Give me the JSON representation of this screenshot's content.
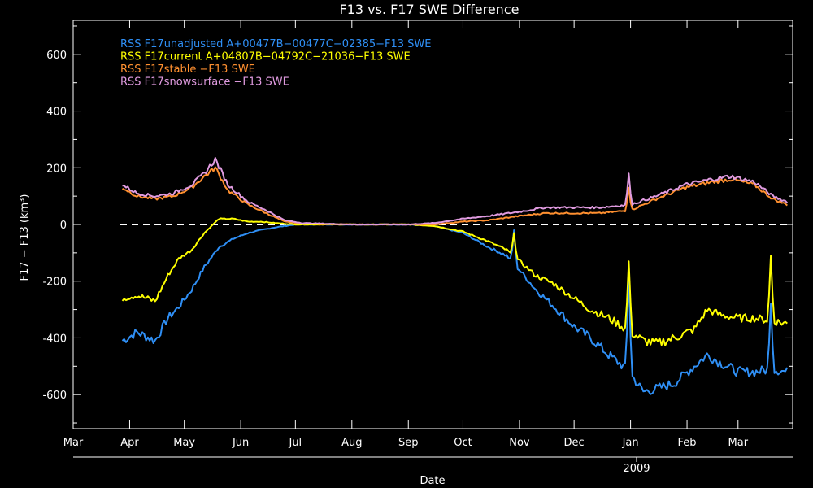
{
  "chart_data": {
    "type": "line",
    "title": "F13 vs. F17 SWE Difference",
    "xlabel": "Date",
    "ylabel": "F17 − F13 (km³)",
    "year_label": "2009",
    "x_ticks": [
      "Mar",
      "Apr",
      "May",
      "Jun",
      "Jul",
      "Aug",
      "Sep",
      "Oct",
      "Nov",
      "Dec",
      "Jan",
      "Feb",
      "Mar"
    ],
    "xlim": [
      "2008-03-01",
      "2009-03-31"
    ],
    "ylim": [
      -720,
      720
    ],
    "y_ticks": [
      -600,
      -400,
      -200,
      0,
      200,
      400,
      600
    ],
    "zero_line": true,
    "grid": false,
    "legend_position": "top-left",
    "series": [
      {
        "name": "RSS F17unadjusted A+00477B−00477C−02385−F13 SWE",
        "color": "#2f8ff5",
        "points": [
          [
            "2008-03-28",
            -410
          ],
          [
            "2008-04-05",
            -380
          ],
          [
            "2008-04-15",
            -410
          ],
          [
            "2008-04-22",
            -330
          ],
          [
            "2008-04-28",
            -290
          ],
          [
            "2008-05-05",
            -230
          ],
          [
            "2008-05-12",
            -150
          ],
          [
            "2008-05-20",
            -80
          ],
          [
            "2008-05-28",
            -50
          ],
          [
            "2008-06-05",
            -30
          ],
          [
            "2008-06-12",
            -20
          ],
          [
            "2008-06-20",
            -10
          ],
          [
            "2008-07-01",
            0
          ],
          [
            "2008-08-01",
            0
          ],
          [
            "2008-09-01",
            0
          ],
          [
            "2008-09-15",
            -5
          ],
          [
            "2008-10-01",
            -30
          ],
          [
            "2008-10-15",
            -80
          ],
          [
            "2008-10-25",
            -110
          ],
          [
            "2008-11-01",
            -160
          ],
          [
            "2008-11-10",
            -230
          ],
          [
            "2008-11-20",
            -290
          ],
          [
            "2008-12-01",
            -360
          ],
          [
            "2008-12-10",
            -400
          ],
          [
            "2008-12-20",
            -460
          ],
          [
            "2008-12-30",
            -510
          ],
          [
            "2009-01-08",
            -590
          ],
          [
            "2009-01-15",
            -580
          ],
          [
            "2009-01-25",
            -560
          ],
          [
            "2009-02-05",
            -500
          ],
          [
            "2009-02-12",
            -460
          ],
          [
            "2009-02-20",
            -490
          ],
          [
            "2009-03-01",
            -520
          ],
          [
            "2009-03-10",
            -520
          ],
          [
            "2009-03-20",
            -510
          ],
          [
            "2009-03-28",
            -520
          ]
        ],
        "spikes": [
          [
            "2008-10-29",
            -20
          ],
          [
            "2008-12-31",
            -175
          ],
          [
            "2009-03-19",
            -280
          ]
        ]
      },
      {
        "name": "RSS F17current A+04807B−04792C−21036−F13 SWE",
        "color": "#ffff00",
        "points": [
          [
            "2008-03-28",
            -260
          ],
          [
            "2008-04-05",
            -250
          ],
          [
            "2008-04-15",
            -270
          ],
          [
            "2008-04-22",
            -180
          ],
          [
            "2008-04-28",
            -120
          ],
          [
            "2008-05-05",
            -90
          ],
          [
            "2008-05-12",
            -30
          ],
          [
            "2008-05-20",
            20
          ],
          [
            "2008-05-28",
            20
          ],
          [
            "2008-06-05",
            10
          ],
          [
            "2008-06-12",
            10
          ],
          [
            "2008-06-20",
            5
          ],
          [
            "2008-07-01",
            0
          ],
          [
            "2008-08-01",
            0
          ],
          [
            "2008-09-01",
            0
          ],
          [
            "2008-09-15",
            -5
          ],
          [
            "2008-10-01",
            -25
          ],
          [
            "2008-10-15",
            -60
          ],
          [
            "2008-10-25",
            -90
          ],
          [
            "2008-11-01",
            -130
          ],
          [
            "2008-11-10",
            -180
          ],
          [
            "2008-11-20",
            -210
          ],
          [
            "2008-12-01",
            -260
          ],
          [
            "2008-12-10",
            -300
          ],
          [
            "2008-12-20",
            -330
          ],
          [
            "2008-12-30",
            -370
          ],
          [
            "2009-01-08",
            -410
          ],
          [
            "2009-01-15",
            -420
          ],
          [
            "2009-01-25",
            -400
          ],
          [
            "2009-02-05",
            -370
          ],
          [
            "2009-02-12",
            -300
          ],
          [
            "2009-02-20",
            -320
          ],
          [
            "2009-03-01",
            -330
          ],
          [
            "2009-03-10",
            -330
          ],
          [
            "2009-03-20",
            -340
          ],
          [
            "2009-03-28",
            -350
          ]
        ],
        "spikes": [
          [
            "2008-10-29",
            -30
          ],
          [
            "2008-12-31",
            -130
          ],
          [
            "2009-03-19",
            -110
          ]
        ]
      },
      {
        "name": "RSS F17stable −F13 SWE",
        "color": "#ff9030",
        "points": [
          [
            "2008-03-28",
            130
          ],
          [
            "2008-04-05",
            100
          ],
          [
            "2008-04-15",
            90
          ],
          [
            "2008-04-25",
            100
          ],
          [
            "2008-05-05",
            130
          ],
          [
            "2008-05-12",
            170
          ],
          [
            "2008-05-18",
            200
          ],
          [
            "2008-05-25",
            120
          ],
          [
            "2008-06-05",
            70
          ],
          [
            "2008-06-15",
            40
          ],
          [
            "2008-06-25",
            10
          ],
          [
            "2008-07-05",
            3
          ],
          [
            "2008-08-01",
            0
          ],
          [
            "2008-09-01",
            0
          ],
          [
            "2008-09-15",
            0
          ],
          [
            "2008-10-01",
            10
          ],
          [
            "2008-10-15",
            15
          ],
          [
            "2008-11-01",
            30
          ],
          [
            "2008-11-15",
            40
          ],
          [
            "2008-12-01",
            40
          ],
          [
            "2008-12-15",
            40
          ],
          [
            "2009-01-01",
            50
          ],
          [
            "2009-01-15",
            90
          ],
          [
            "2009-01-31",
            130
          ],
          [
            "2009-02-15",
            150
          ],
          [
            "2009-02-25",
            160
          ],
          [
            "2009-03-10",
            140
          ],
          [
            "2009-03-20",
            90
          ],
          [
            "2009-03-28",
            70
          ]
        ],
        "spikes": [
          [
            "2008-12-31",
            130
          ]
        ]
      },
      {
        "name": "RSS F17snowsurface −F13 SWE",
        "color": "#e09be0",
        "points": [
          [
            "2008-03-28",
            140
          ],
          [
            "2008-04-05",
            110
          ],
          [
            "2008-04-15",
            100
          ],
          [
            "2008-04-25",
            110
          ],
          [
            "2008-05-05",
            140
          ],
          [
            "2008-05-12",
            180
          ],
          [
            "2008-05-18",
            230
          ],
          [
            "2008-05-25",
            140
          ],
          [
            "2008-06-05",
            80
          ],
          [
            "2008-06-15",
            50
          ],
          [
            "2008-06-25",
            15
          ],
          [
            "2008-07-05",
            5
          ],
          [
            "2008-08-01",
            0
          ],
          [
            "2008-09-01",
            0
          ],
          [
            "2008-09-15",
            5
          ],
          [
            "2008-10-01",
            20
          ],
          [
            "2008-10-15",
            30
          ],
          [
            "2008-11-01",
            45
          ],
          [
            "2008-11-15",
            60
          ],
          [
            "2008-12-01",
            60
          ],
          [
            "2008-12-15",
            60
          ],
          [
            "2009-01-01",
            70
          ],
          [
            "2009-01-15",
            100
          ],
          [
            "2009-01-31",
            140
          ],
          [
            "2009-02-15",
            160
          ],
          [
            "2009-02-25",
            170
          ],
          [
            "2009-03-10",
            150
          ],
          [
            "2009-03-20",
            100
          ],
          [
            "2009-03-28",
            80
          ]
        ],
        "spikes": [
          [
            "2008-12-31",
            180
          ]
        ]
      }
    ]
  }
}
